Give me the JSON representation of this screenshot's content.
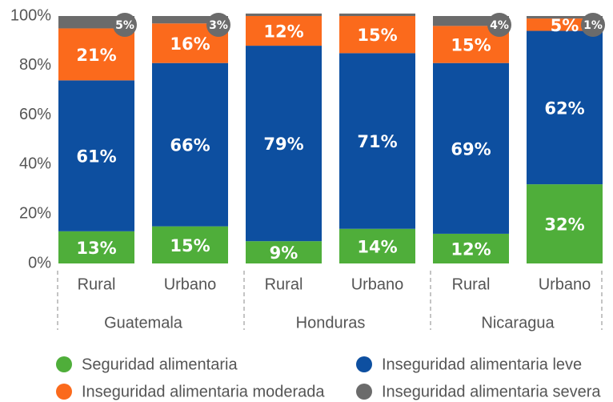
{
  "chart_data": {
    "type": "stacked_bar",
    "categories": [
      "Rural",
      "Urbano",
      "Rural",
      "Urbano",
      "Rural",
      "Urbano"
    ],
    "groups": [
      "Guatemala",
      "Honduras",
      "Nicaragua"
    ],
    "series": [
      {
        "name": "Seguridad alimentaria",
        "color": "#4fae3a",
        "values": [
          13,
          15,
          9,
          14,
          12,
          32
        ],
        "value_labels": [
          "13%",
          "15%",
          "9%",
          "14%",
          "12%",
          "32%"
        ]
      },
      {
        "name": "Inseguridad alimentaria leve",
        "color": "#0d4fa0",
        "values": [
          61,
          66,
          79,
          71,
          69,
          62
        ],
        "value_labels": [
          "61%",
          "66%",
          "79%",
          "71%",
          "69%",
          "62%"
        ]
      },
      {
        "name": "Inseguridad alimentaria moderada",
        "color": "#fb6a1c",
        "values": [
          21,
          16,
          12,
          15,
          15,
          5
        ],
        "value_labels": [
          "21%",
          "16%",
          "12%",
          "15%",
          "15%",
          "5%"
        ]
      },
      {
        "name": "Inseguridad alimentaria severa",
        "color": "#6b6b6b",
        "values": [
          5,
          3,
          1,
          1,
          4,
          1
        ],
        "value_labels": [
          "5%",
          "3%",
          null,
          null,
          "4%",
          "1%"
        ]
      }
    ],
    "ylim": [
      0,
      100
    ],
    "yticks": [
      {
        "value": 0,
        "label": "0%"
      },
      {
        "value": 20,
        "label": "20%"
      },
      {
        "value": 40,
        "label": "40%"
      },
      {
        "value": 60,
        "label": "60%"
      },
      {
        "value": 80,
        "label": "80%"
      },
      {
        "value": 100,
        "label": "100%"
      }
    ],
    "grid": false,
    "legend": "bottom"
  }
}
